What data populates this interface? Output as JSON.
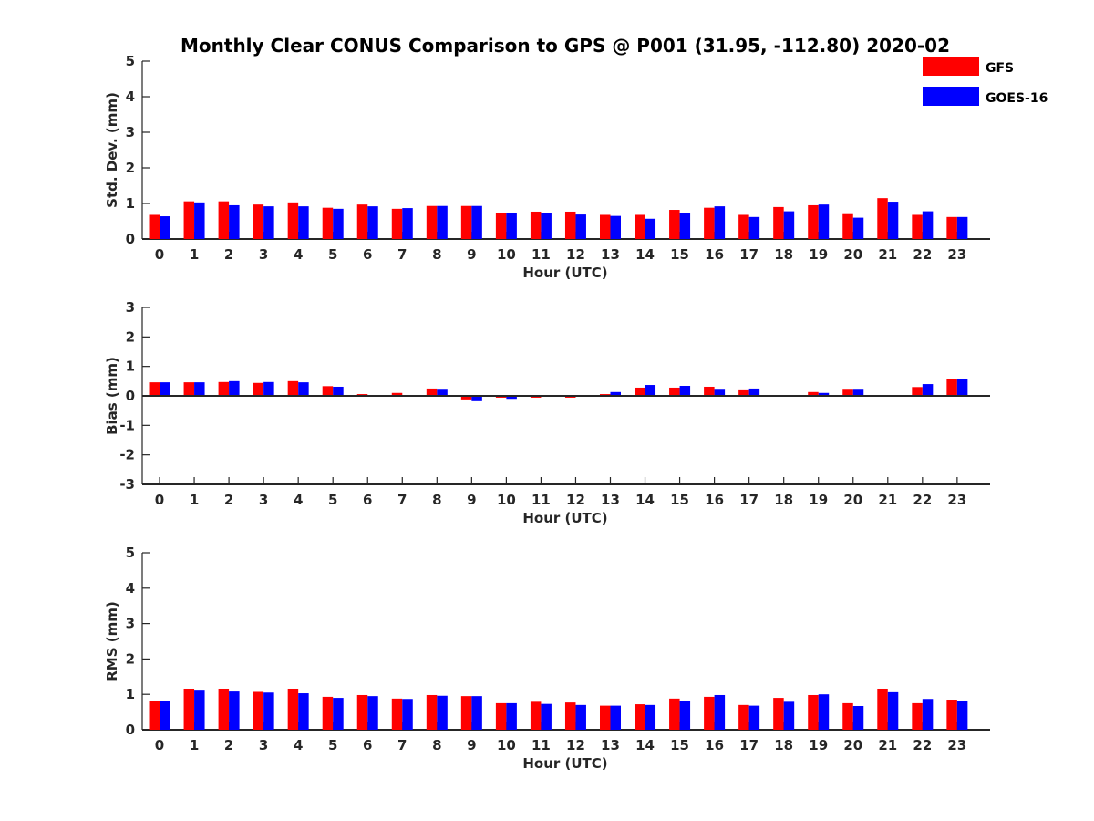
{
  "chart_data": {
    "title": "Monthly Clear CONUS Comparison to GPS @ P001 (31.95, -112.80) 2020-02",
    "legend": {
      "placement": "top-right",
      "entries": [
        {
          "name": "GFS",
          "color": "#ff0000"
        },
        {
          "name": "GOES-16",
          "color": "#0000ff"
        }
      ]
    },
    "charts": [
      {
        "type": "bar",
        "name": "std-dev",
        "xlabel": "Hour (UTC)",
        "ylabel": "Std. Dev. (mm)",
        "ylim": [
          0,
          5
        ],
        "yticks": [
          "0",
          "1",
          "2",
          "3",
          "4",
          "5"
        ],
        "categories": [
          "0",
          "1",
          "2",
          "3",
          "4",
          "5",
          "6",
          "7",
          "8",
          "9",
          "10",
          "11",
          "12",
          "13",
          "14",
          "15",
          "16",
          "17",
          "18",
          "19",
          "20",
          "21",
          "22",
          "23"
        ],
        "series": [
          {
            "name": "GFS",
            "color": "#ff0000",
            "values": [
              0.68,
              1.06,
              1.06,
              0.97,
              1.03,
              0.88,
              0.97,
              0.85,
              0.93,
              0.93,
              0.73,
              0.77,
              0.77,
              0.68,
              0.68,
              0.82,
              0.88,
              0.68,
              0.9,
              0.95,
              0.7,
              1.15,
              0.68,
              0.62
            ]
          },
          {
            "name": "GOES-16",
            "color": "#0000ff",
            "values": [
              0.64,
              1.03,
              0.95,
              0.92,
              0.92,
              0.85,
              0.92,
              0.87,
              0.93,
              0.93,
              0.72,
              0.72,
              0.69,
              0.65,
              0.57,
              0.72,
              0.92,
              0.62,
              0.78,
              0.97,
              0.6,
              1.05,
              0.78,
              0.62
            ]
          }
        ]
      },
      {
        "type": "bar",
        "name": "bias",
        "xlabel": "Hour (UTC)",
        "ylabel": "Bias (mm)",
        "ylim": [
          -3,
          3
        ],
        "yticks": [
          "-3",
          "-2",
          "-1",
          "0",
          "1",
          "2",
          "3"
        ],
        "categories": [
          "0",
          "1",
          "2",
          "3",
          "4",
          "5",
          "6",
          "7",
          "8",
          "9",
          "10",
          "11",
          "12",
          "13",
          "14",
          "15",
          "16",
          "17",
          "18",
          "19",
          "20",
          "21",
          "22",
          "23"
        ],
        "series": [
          {
            "name": "GFS",
            "color": "#ff0000",
            "values": [
              0.46,
              0.46,
              0.47,
              0.44,
              0.5,
              0.33,
              0.06,
              0.1,
              0.25,
              -0.12,
              -0.06,
              -0.06,
              -0.06,
              0.06,
              0.28,
              0.28,
              0.31,
              0.22,
              0.0,
              0.13,
              0.24,
              0.0,
              0.3,
              0.56
            ]
          },
          {
            "name": "GOES-16",
            "color": "#0000ff",
            "values": [
              0.46,
              0.46,
              0.5,
              0.47,
              0.46,
              0.31,
              0.03,
              0.03,
              0.24,
              -0.18,
              -0.1,
              -0.03,
              -0.03,
              0.13,
              0.37,
              0.34,
              0.24,
              0.25,
              0.0,
              0.1,
              0.24,
              0.0,
              0.4,
              0.56
            ]
          }
        ]
      },
      {
        "type": "bar",
        "name": "rms",
        "xlabel": "Hour (UTC)",
        "ylabel": "RMS (mm)",
        "ylim": [
          0,
          5
        ],
        "yticks": [
          "0",
          "1",
          "2",
          "3",
          "4",
          "5"
        ],
        "categories": [
          "0",
          "1",
          "2",
          "3",
          "4",
          "5",
          "6",
          "7",
          "8",
          "9",
          "10",
          "11",
          "12",
          "13",
          "14",
          "15",
          "16",
          "17",
          "18",
          "19",
          "20",
          "21",
          "22",
          "23"
        ],
        "series": [
          {
            "name": "GFS",
            "color": "#ff0000",
            "values": [
              0.82,
              1.16,
              1.16,
              1.07,
              1.16,
              0.93,
              0.98,
              0.88,
              0.98,
              0.95,
              0.75,
              0.79,
              0.77,
              0.68,
              0.72,
              0.88,
              0.93,
              0.7,
              0.9,
              0.98,
              0.75,
              1.16,
              0.75,
              0.85
            ]
          },
          {
            "name": "GOES-16",
            "color": "#0000ff",
            "values": [
              0.8,
              1.13,
              1.08,
              1.05,
              1.03,
              0.9,
              0.95,
              0.87,
              0.96,
              0.95,
              0.75,
              0.73,
              0.7,
              0.68,
              0.7,
              0.8,
              0.98,
              0.68,
              0.79,
              1.0,
              0.67,
              1.06,
              0.87,
              0.82
            ]
          }
        ]
      }
    ]
  }
}
